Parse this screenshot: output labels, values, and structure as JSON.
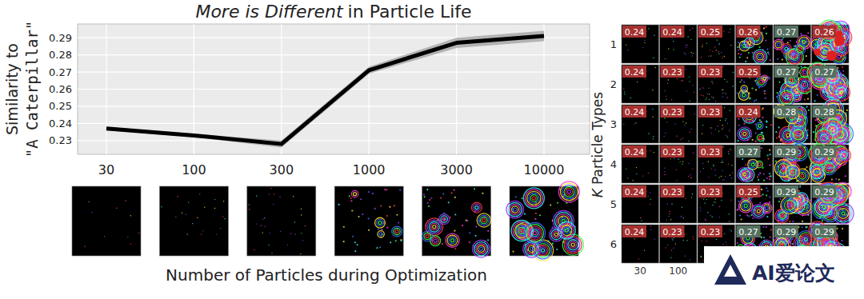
{
  "chart_data": [
    {
      "type": "line",
      "title": [
        "More is Different",
        "in Particle Life"
      ],
      "xlabel": "Number of Particles during Optimization",
      "ylabel": [
        "Similarity to",
        "\"A Caterpillar\""
      ],
      "categories": [
        "30",
        "100",
        "300",
        "1000",
        "3000",
        "10000"
      ],
      "values": [
        0.237,
        0.233,
        0.228,
        0.271,
        0.287,
        0.291
      ],
      "errors": [
        0.001,
        0.001,
        0.002,
        0.002,
        0.003,
        0.003
      ],
      "color": "#000000",
      "ylim": [
        0.222,
        0.298
      ],
      "yticks": [
        0.23,
        0.24,
        0.25,
        0.26,
        0.27,
        0.28,
        0.29
      ],
      "grid": true
    },
    {
      "type": "heatmap",
      "ylabel": [
        "K",
        "Particle Types"
      ],
      "x": [
        "30",
        "100",
        null,
        null,
        null,
        null
      ],
      "y": [
        "1",
        "2",
        "3",
        "4",
        "5",
        "6"
      ],
      "cells": [
        [
          0.24,
          0.24,
          0.25,
          0.26,
          0.27,
          0.26
        ],
        [
          0.24,
          0.23,
          0.23,
          0.25,
          0.27,
          0.27
        ],
        [
          0.24,
          0.23,
          0.23,
          0.24,
          0.28,
          0.28
        ],
        [
          0.24,
          0.23,
          0.23,
          0.27,
          0.29,
          0.29
        ],
        [
          0.24,
          0.23,
          0.23,
          0.25,
          0.29,
          0.29
        ],
        [
          0.24,
          0.23,
          0.23,
          0.27,
          0.29,
          0.29
        ]
      ],
      "colors": [
        [
          "#a5312f",
          "#a5312f",
          "#a5312f",
          "#a5312f",
          "#55705f",
          "#a5312f"
        ],
        [
          "#a5312f",
          "#a5312f",
          "#a5312f",
          "#a5312f",
          "#55705f",
          "#55705f"
        ],
        [
          "#a5312f",
          "#a5312f",
          "#a5312f",
          "#a5312f",
          "#55705f",
          "#55705f"
        ],
        [
          "#a5312f",
          "#a5312f",
          "#a5312f",
          "#55705f",
          "#55705f",
          "#55705f"
        ],
        [
          "#a5312f",
          "#a5312f",
          "#a5312f",
          "#a5312f",
          "#55705f",
          "#55705f"
        ],
        [
          "#a5312f",
          "#a5312f",
          "#a5312f",
          "#55705f",
          "#55705f",
          "#55705f"
        ]
      ],
      "data_labels": true
    }
  ],
  "watermark": "AI爱论文"
}
